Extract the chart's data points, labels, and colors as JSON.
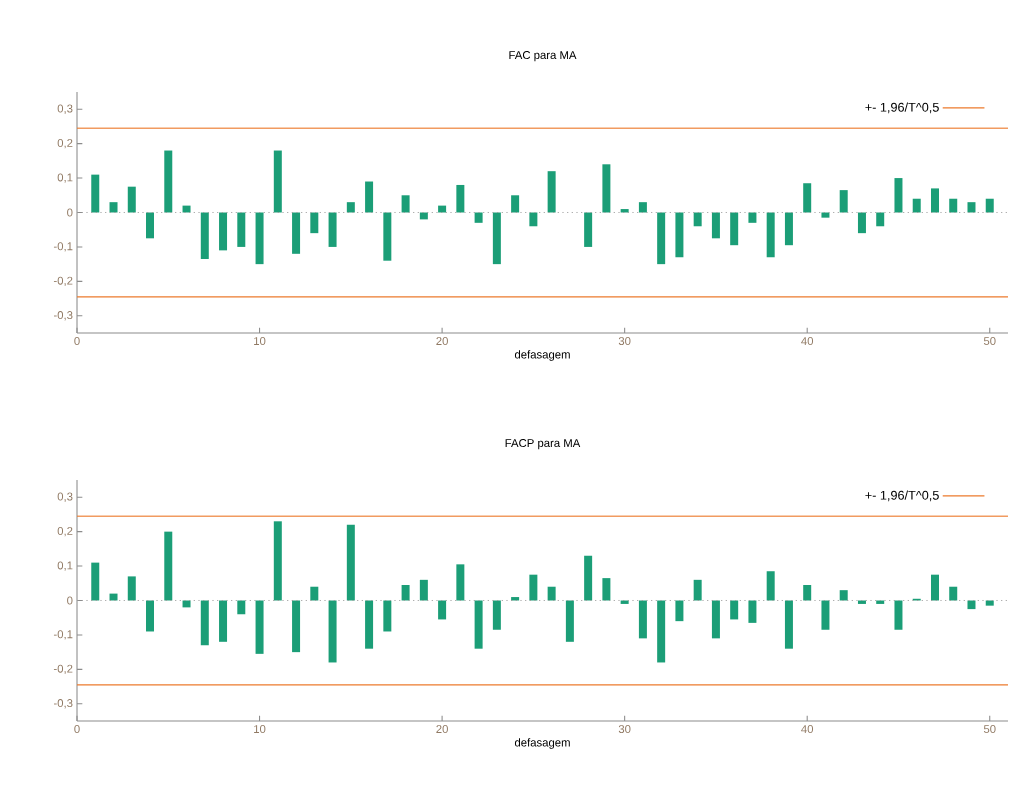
{
  "chart_data": [
    {
      "type": "bar",
      "title": "FAC para MA",
      "xlabel": "defasagem",
      "color": "#1b9e77",
      "legend": "top right",
      "x": [
        1,
        2,
        3,
        4,
        5,
        6,
        7,
        8,
        9,
        10,
        11,
        12,
        13,
        14,
        15,
        16,
        17,
        18,
        19,
        20,
        21,
        22,
        23,
        24,
        25,
        26,
        27,
        28,
        29,
        30,
        31,
        32,
        33,
        34,
        35,
        36,
        37,
        38,
        39,
        40,
        41,
        42,
        43,
        44,
        45,
        46,
        47,
        48,
        49,
        50
      ],
      "values": [
        0.11,
        0.03,
        0.075,
        -0.075,
        0.18,
        0.02,
        -0.135,
        -0.11,
        -0.1,
        -0.15,
        0.18,
        -0.12,
        -0.06,
        -0.1,
        0.03,
        0.09,
        -0.14,
        0.05,
        -0.02,
        0.02,
        0.08,
        -0.03,
        -0.15,
        0.05,
        -0.04,
        0.12,
        0,
        -0.1,
        0.14,
        0.01,
        0.03,
        -0.15,
        -0.13,
        -0.04,
        -0.075,
        -0.095,
        -0.03,
        -0.13,
        -0.095,
        0.085,
        -0.015,
        0.065,
        -0.06,
        -0.04,
        0.1,
        0.04,
        0.07,
        0.04,
        0.03,
        0.04
      ],
      "xlim": [
        0,
        51
      ],
      "ylim": [
        -0.35,
        0.35
      ],
      "xticks": [
        0,
        10,
        20,
        30,
        40,
        50
      ],
      "yticks": [
        {
          "value": -0.3,
          "label": "-0,3"
        },
        {
          "value": -0.2,
          "label": "-0,2"
        },
        {
          "value": -0.1,
          "label": "-0,1"
        },
        0,
        {
          "value": 0.1,
          "label": "0,1"
        },
        {
          "value": 0.2,
          "label": "0,2"
        },
        {
          "value": 0.3,
          "label": "0,3"
        }
      ],
      "ref_lines": [
        {
          "axis": "y",
          "value": 0.245,
          "label": "+- 1,96/T^0,5",
          "color": "#ec7a2c"
        },
        {
          "axis": "y",
          "value": -0.245,
          "color": "#ec7a2c"
        },
        {
          "axis": "y",
          "value": 0,
          "color": "#999999",
          "line_style": "dotted"
        }
      ]
    },
    {
      "type": "bar",
      "title": "FACP para MA",
      "xlabel": "defasagem",
      "color": "#1b9e77",
      "legend": "top right",
      "x": [
        1,
        2,
        3,
        4,
        5,
        6,
        7,
        8,
        9,
        10,
        11,
        12,
        13,
        14,
        15,
        16,
        17,
        18,
        19,
        20,
        21,
        22,
        23,
        24,
        25,
        26,
        27,
        28,
        29,
        30,
        31,
        32,
        33,
        34,
        35,
        36,
        37,
        38,
        39,
        40,
        41,
        42,
        43,
        44,
        45,
        46,
        47,
        48,
        49,
        50
      ],
      "values": [
        0.11,
        0.02,
        0.07,
        -0.09,
        0.2,
        -0.02,
        -0.13,
        -0.12,
        -0.04,
        -0.155,
        0.23,
        -0.15,
        0.04,
        -0.18,
        0.22,
        -0.14,
        -0.09,
        0.045,
        0.06,
        -0.055,
        0.105,
        -0.14,
        -0.085,
        0.01,
        0.075,
        0.04,
        -0.12,
        0.13,
        0.065,
        -0.01,
        -0.11,
        -0.18,
        -0.06,
        0.06,
        -0.11,
        -0.055,
        -0.065,
        0.085,
        -0.14,
        0.045,
        -0.085,
        0.03,
        -0.01,
        -0.01,
        -0.085,
        0.005,
        0.075,
        0.04,
        -0.025,
        -0.015
      ],
      "xlim": [
        0,
        51
      ],
      "ylim": [
        -0.35,
        0.35
      ],
      "xticks": [
        0,
        10,
        20,
        30,
        40,
        50
      ],
      "yticks": [
        {
          "value": -0.3,
          "label": "-0,3"
        },
        {
          "value": -0.2,
          "label": "-0,2"
        },
        {
          "value": -0.1,
          "label": "-0,1"
        },
        0,
        {
          "value": 0.1,
          "label": "0,1"
        },
        {
          "value": 0.2,
          "label": "0,2"
        },
        {
          "value": 0.3,
          "label": "0,3"
        }
      ],
      "ref_lines": [
        {
          "axis": "y",
          "value": 0.245,
          "label": "+- 1,96/T^0,5",
          "color": "#ec7a2c"
        },
        {
          "axis": "y",
          "value": -0.245,
          "color": "#ec7a2c"
        },
        {
          "axis": "y",
          "value": 0,
          "color": "#999999",
          "line_style": "dotted"
        }
      ]
    }
  ]
}
